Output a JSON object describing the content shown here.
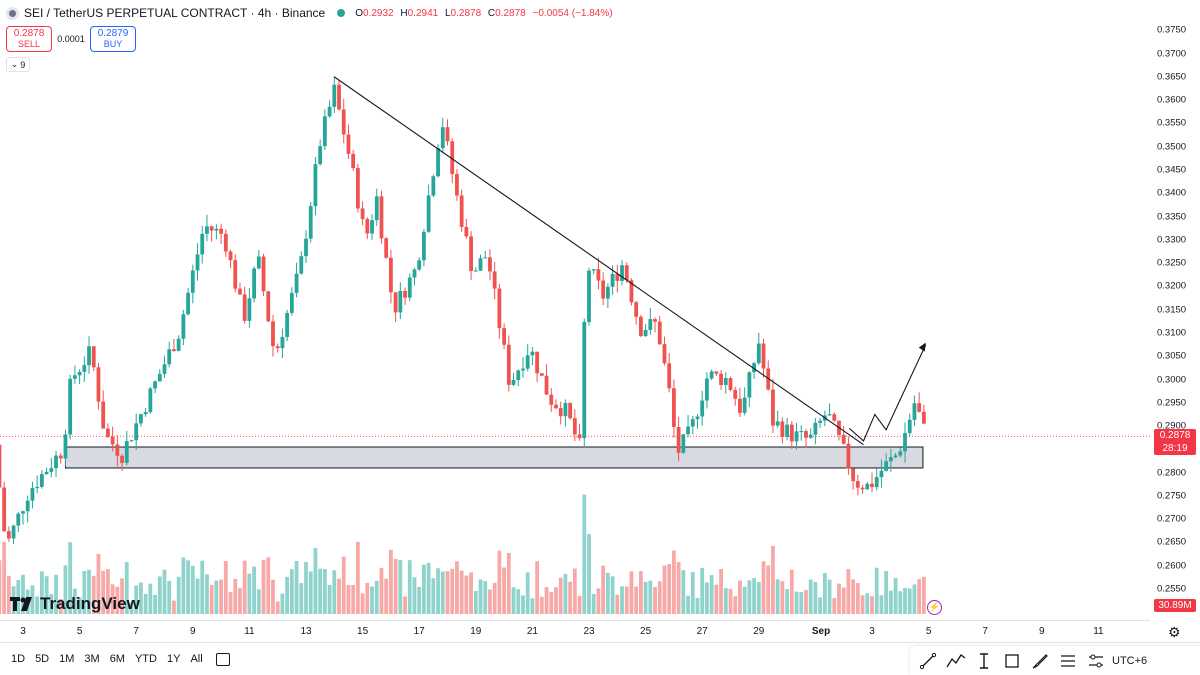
{
  "header": {
    "symbol": "SEI / TetherUS PERPETUAL CONTRACT · 4h · Binance",
    "open_label": "O",
    "open": "0.2932",
    "high_label": "H",
    "high": "0.2941",
    "low_label": "L",
    "low": "0.2878",
    "close_label": "C",
    "close": "0.2878",
    "change": "−0.0054 (−1.84%)"
  },
  "trade": {
    "sell_price": "0.2878",
    "sell_label": "SELL",
    "spread": "0.0001",
    "buy_price": "0.2879",
    "buy_label": "BUY"
  },
  "indicators_count": "9",
  "branding": {
    "logo_text": "TradingView"
  },
  "price_label": {
    "price": "0.2878",
    "countdown": "28:19"
  },
  "volume_label": "30.89M",
  "timezone": "UTC+6",
  "range_buttons": [
    "1D",
    "5D",
    "1M",
    "3M",
    "6M",
    "YTD",
    "1Y",
    "All"
  ],
  "icons": [
    "symbol-icon",
    "eye-icon",
    "chevron-down-icon",
    "settings-gear-icon",
    "calendar-icon",
    "lightning-icon",
    "trend-line-icon",
    "path-icon",
    "text-cursor-icon",
    "rectangle-icon",
    "brush-icon",
    "fib-icon",
    "multi-tool-icon"
  ],
  "colors": {
    "up": "#26a69a",
    "down": "#ef5350",
    "vol_up": "#8fd3cc",
    "vol_down": "#f7a9a7",
    "price_line": "#f23645",
    "zone_fill": "#d1d4dc"
  },
  "chart_data": {
    "type": "candlestick",
    "timeframe": "4h",
    "x_ticks": [
      "3",
      "5",
      "7",
      "9",
      "11",
      "13",
      "15",
      "17",
      "19",
      "21",
      "23",
      "25",
      "27",
      "29",
      "Sep",
      "3",
      "5",
      "7",
      "9",
      "11"
    ],
    "y_ticks": [
      "0.3750",
      "0.3700",
      "0.3650",
      "0.3600",
      "0.3550",
      "0.3500",
      "0.3450",
      "0.3400",
      "0.3350",
      "0.3300",
      "0.3250",
      "0.3200",
      "0.3150",
      "0.3100",
      "0.3050",
      "0.3000",
      "0.2950",
      "0.2900",
      "0.2850",
      "0.2800",
      "0.2750",
      "0.2700",
      "0.2650",
      "0.2600",
      "0.2550"
    ],
    "ylim": [
      0.2535,
      0.377
    ],
    "x_range_days": [
      2,
      12
    ],
    "support_zone": {
      "x_start_day": 4.5,
      "x_end_day": 34.8,
      "y_low": 0.281,
      "y_high": 0.2855
    },
    "trendline": {
      "from": {
        "day": 14.0,
        "price": 0.365
      },
      "to": {
        "day": 32.7,
        "price": 0.286
      }
    },
    "projection_path": [
      {
        "day": 32.2,
        "price": 0.2895
      },
      {
        "day": 32.7,
        "price": 0.2868
      },
      {
        "day": 33.1,
        "price": 0.2925
      },
      {
        "day": 33.5,
        "price": 0.2892
      },
      {
        "day": 34.9,
        "price": 0.3075
      }
    ],
    "key_closes": [
      {
        "day": 2.0,
        "price": 0.286
      },
      {
        "day": 2.4,
        "price": 0.264
      },
      {
        "day": 3.2,
        "price": 0.276
      },
      {
        "day": 4.4,
        "price": 0.285
      },
      {
        "day": 4.7,
        "price": 0.3
      },
      {
        "day": 5.4,
        "price": 0.306
      },
      {
        "day": 5.9,
        "price": 0.288
      },
      {
        "day": 6.5,
        "price": 0.284
      },
      {
        "day": 7.2,
        "price": 0.293
      },
      {
        "day": 8.5,
        "price": 0.31
      },
      {
        "day": 9.4,
        "price": 0.333
      },
      {
        "day": 10.1,
        "price": 0.331
      },
      {
        "day": 10.8,
        "price": 0.313
      },
      {
        "day": 11.3,
        "price": 0.326
      },
      {
        "day": 11.9,
        "price": 0.305
      },
      {
        "day": 12.8,
        "price": 0.324
      },
      {
        "day": 13.5,
        "price": 0.351
      },
      {
        "day": 14.0,
        "price": 0.362
      },
      {
        "day": 14.6,
        "price": 0.346
      },
      {
        "day": 15.1,
        "price": 0.33
      },
      {
        "day": 15.5,
        "price": 0.339
      },
      {
        "day": 16.1,
        "price": 0.315
      },
      {
        "day": 16.9,
        "price": 0.324
      },
      {
        "day": 17.8,
        "price": 0.356
      },
      {
        "day": 18.3,
        "price": 0.34
      },
      {
        "day": 18.9,
        "price": 0.323
      },
      {
        "day": 19.4,
        "price": 0.327
      },
      {
        "day": 20.2,
        "price": 0.299
      },
      {
        "day": 20.9,
        "price": 0.307
      },
      {
        "day": 21.6,
        "price": 0.296
      },
      {
        "day": 22.2,
        "price": 0.293
      },
      {
        "day": 22.7,
        "price": 0.285
      },
      {
        "day": 22.9,
        "price": 0.325
      },
      {
        "day": 23.5,
        "price": 0.318
      },
      {
        "day": 24.2,
        "price": 0.325
      },
      {
        "day": 24.8,
        "price": 0.311
      },
      {
        "day": 25.4,
        "price": 0.312
      },
      {
        "day": 25.9,
        "price": 0.295
      },
      {
        "day": 26.1,
        "price": 0.284
      },
      {
        "day": 26.6,
        "price": 0.289
      },
      {
        "day": 27.2,
        "price": 0.301
      },
      {
        "day": 27.9,
        "price": 0.3
      },
      {
        "day": 28.4,
        "price": 0.293
      },
      {
        "day": 29.0,
        "price": 0.308
      },
      {
        "day": 29.5,
        "price": 0.291
      },
      {
        "day": 30.2,
        "price": 0.288
      },
      {
        "day": 30.8,
        "price": 0.287
      },
      {
        "day": 31.4,
        "price": 0.293
      },
      {
        "day": 31.9,
        "price": 0.286
      },
      {
        "day": 32.4,
        "price": 0.278
      },
      {
        "day": 32.9,
        "price": 0.277
      },
      {
        "day": 33.4,
        "price": 0.281
      },
      {
        "day": 33.9,
        "price": 0.284
      },
      {
        "day": 34.2,
        "price": 0.289
      },
      {
        "day": 34.5,
        "price": 0.295
      },
      {
        "day": 34.7,
        "price": 0.292
      },
      {
        "day": 34.9,
        "price": 0.2878
      }
    ]
  }
}
